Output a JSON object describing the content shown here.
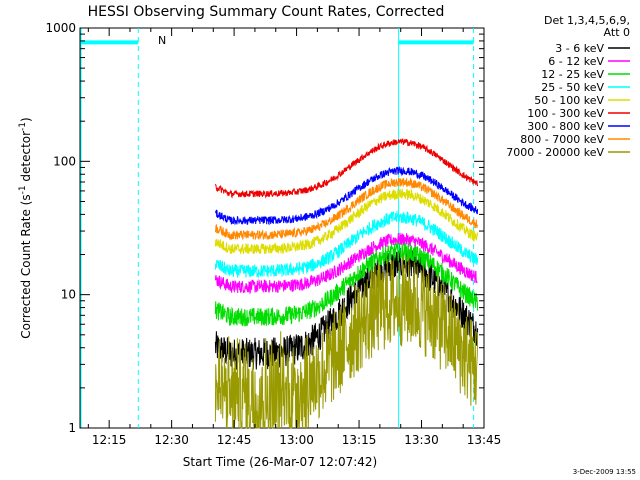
{
  "chart_data": {
    "type": "line",
    "title": "HESSI Observing Summary Count Rates, Corrected",
    "xlabel": "Start Time (26-Mar-07 12:07:42)",
    "ylabel_main": "Corrected Count Rate (s",
    "ylabel_sup1": "-1",
    "ylabel_mid": " detector",
    "ylabel_sup2": "-1",
    "ylabel_end": ")",
    "yscale": "log",
    "ylim": [
      1,
      1000
    ],
    "xlim_minutes": [
      12.13,
      13.77
    ],
    "x_ticks": [
      "12:15",
      "12:30",
      "12:45",
      "13:00",
      "13:15",
      "13:30",
      "13:45"
    ],
    "y_ticks": [
      "1",
      "10",
      "100",
      "1000"
    ],
    "legend_header": [
      "Det 1,3,4,5,6,9,",
      "Att 0"
    ],
    "series": [
      {
        "name": "3 - 6 keV",
        "color": "#000000",
        "base": 3.6,
        "peak": 17,
        "noise": 0.12
      },
      {
        "name": "6 - 12 keV",
        "color": "#ff00ff",
        "base": 11.5,
        "peak": 26,
        "noise": 0.05
      },
      {
        "name": "12 - 25 keV",
        "color": "#00dd00",
        "base": 6.8,
        "peak": 21,
        "noise": 0.07
      },
      {
        "name": "25 - 50 keV",
        "color": "#00ffff",
        "base": 15,
        "peak": 38,
        "noise": 0.05
      },
      {
        "name": "50 - 100 keV",
        "color": "#dddd00",
        "base": 22,
        "peak": 57,
        "noise": 0.04
      },
      {
        "name": "100 - 300 keV",
        "color": "#ee0000",
        "base": 57,
        "peak": 140,
        "noise": 0.025
      },
      {
        "name": "300 - 800 keV",
        "color": "#0000ff",
        "base": 36,
        "peak": 85,
        "noise": 0.03
      },
      {
        "name": "800 - 7000 keV",
        "color": "#ff8800",
        "base": 28,
        "peak": 70,
        "noise": 0.035
      },
      {
        "name": "7000 - 20000 keV",
        "color": "#999900",
        "base": 1.8,
        "peak": 9,
        "noise": 0.35
      }
    ],
    "annotations": {
      "night_label": "N",
      "timestamp": "3-Dec-2009 13:55"
    }
  }
}
